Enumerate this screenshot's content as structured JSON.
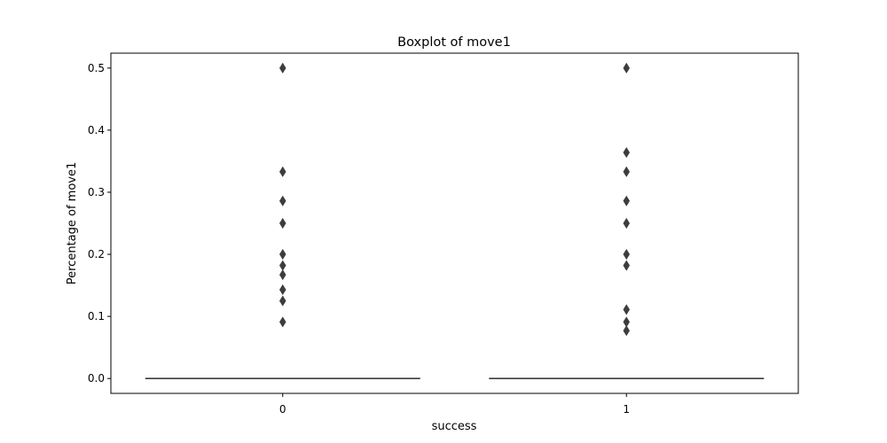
{
  "chart_data": {
    "type": "box",
    "title": "Boxplot of move1",
    "xlabel": "success",
    "ylabel": "Percentage of move1",
    "categories": [
      "0",
      "1"
    ],
    "ylim": [
      -0.024,
      0.524
    ],
    "yticks": [
      0.0,
      0.1,
      0.2,
      0.3,
      0.4,
      0.5
    ],
    "ytick_labels": [
      "0.0",
      "0.1",
      "0.2",
      "0.3",
      "0.4",
      "0.5"
    ],
    "grid": false,
    "boxes": [
      {
        "category": "0",
        "q1": 0.0,
        "median": 0.0,
        "q3": 0.0,
        "whisker_low": 0.0,
        "whisker_high": 0.0,
        "outliers": [
          0.5,
          0.333,
          0.286,
          0.25,
          0.2,
          0.182,
          0.167,
          0.143,
          0.125,
          0.091
        ]
      },
      {
        "category": "1",
        "q1": 0.0,
        "median": 0.0,
        "q3": 0.0,
        "whisker_low": 0.0,
        "whisker_high": 0.0,
        "outliers": [
          0.5,
          0.364,
          0.333,
          0.286,
          0.25,
          0.2,
          0.182,
          0.111,
          0.091,
          0.077
        ]
      }
    ],
    "colors": {
      "box": "#3d3d3d",
      "axes": "#000000"
    }
  }
}
